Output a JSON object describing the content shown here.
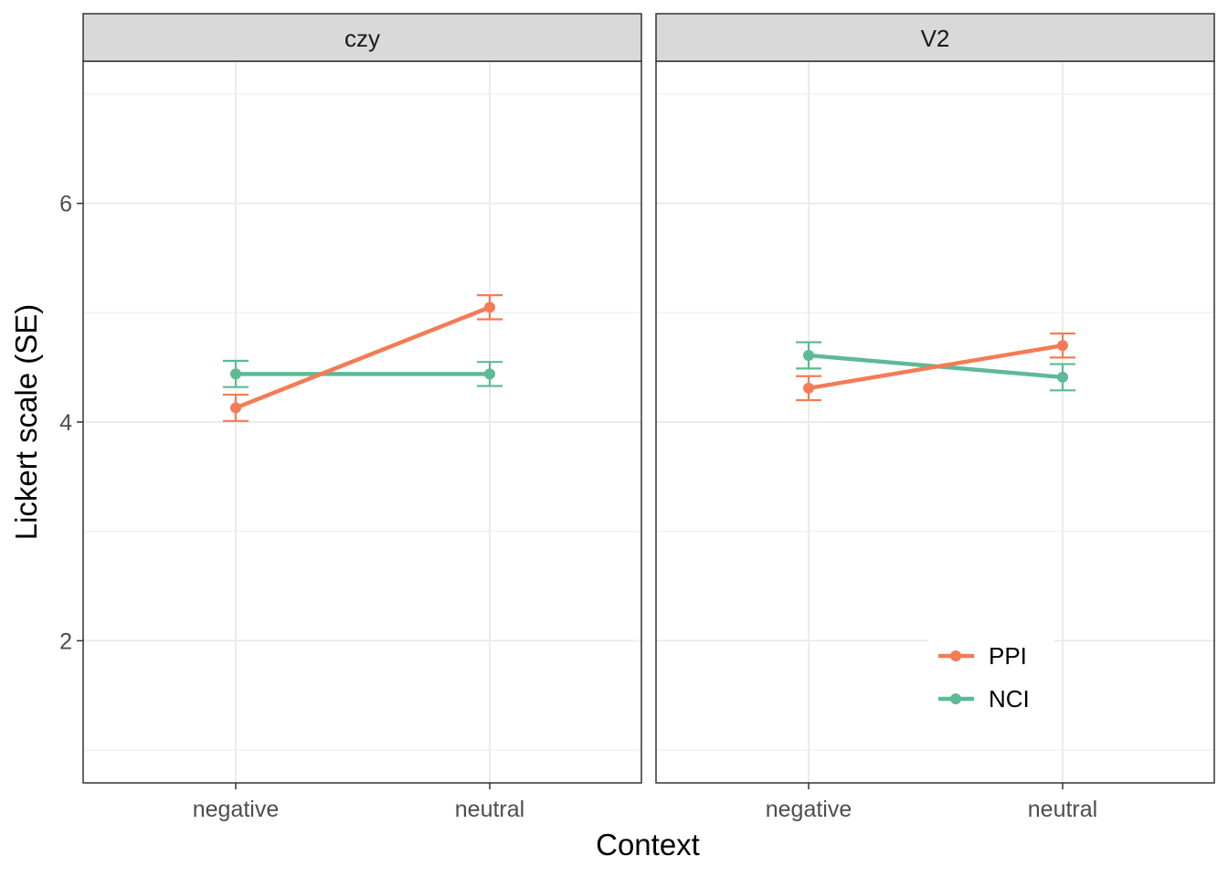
{
  "chart_data": {
    "type": "line",
    "xlabel": "Context",
    "ylabel": "Lickert scale (SE)",
    "categories": [
      "negative",
      "neutral"
    ],
    "ylim": [
      0.7,
      7.3
    ],
    "yticks": [
      2,
      4,
      6
    ],
    "grid": true,
    "legend_position": "bottom-right",
    "colors": {
      "PPI": "#f47b55",
      "NCI": "#5dba95"
    },
    "panels": [
      {
        "title": "czy",
        "series": [
          {
            "name": "PPI",
            "values": [
              4.13,
              5.05
            ],
            "se": [
              0.12,
              0.11
            ]
          },
          {
            "name": "NCI",
            "values": [
              4.44,
              4.44
            ],
            "se": [
              0.12,
              0.11
            ]
          }
        ]
      },
      {
        "title": "V2",
        "series": [
          {
            "name": "PPI",
            "values": [
              4.31,
              4.7
            ],
            "se": [
              0.11,
              0.11
            ]
          },
          {
            "name": "NCI",
            "values": [
              4.61,
              4.41
            ],
            "se": [
              0.12,
              0.12
            ]
          }
        ]
      }
    ],
    "legend": [
      "PPI",
      "NCI"
    ]
  }
}
